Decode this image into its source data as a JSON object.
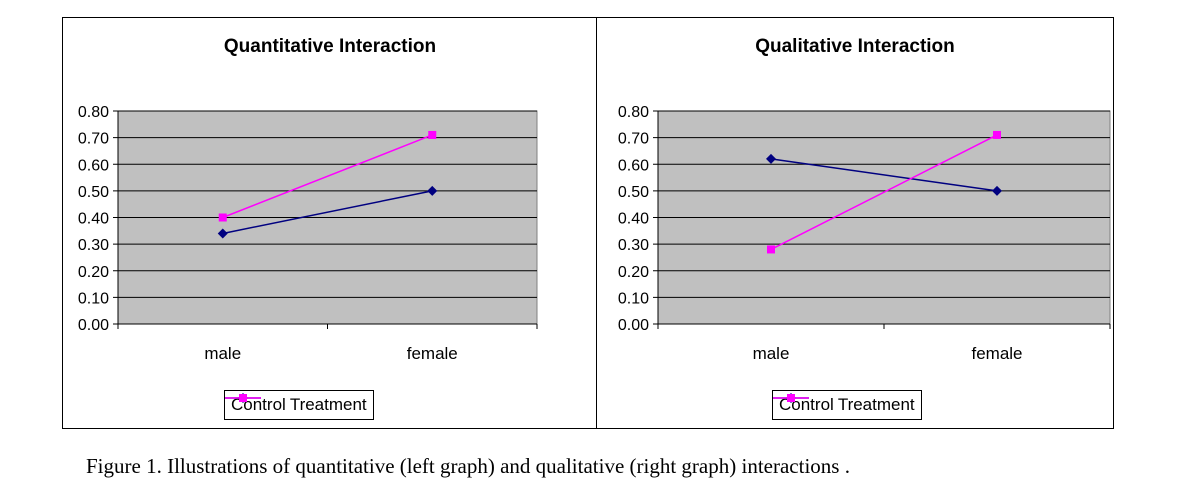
{
  "colors": {
    "plot_bg": "#c0c0c0",
    "control": "#000080",
    "treatment": "#ff00ff",
    "grid": "#000000"
  },
  "chart_data": [
    {
      "type": "line",
      "title": "Quantitative Interaction",
      "categories": [
        "male",
        "female"
      ],
      "ylim": [
        0,
        0.8
      ],
      "yticks": [
        "0.00",
        "0.10",
        "0.20",
        "0.30",
        "0.40",
        "0.50",
        "0.60",
        "0.70",
        "0.80"
      ],
      "grid": true,
      "legend_position": "bottom",
      "series": [
        {
          "name": "Control",
          "values": [
            0.34,
            0.5
          ],
          "marker": "diamond"
        },
        {
          "name": "Treatment",
          "values": [
            0.4,
            0.71
          ],
          "marker": "square"
        }
      ]
    },
    {
      "type": "line",
      "title": "Qualitative Interaction",
      "categories": [
        "male",
        "female"
      ],
      "ylim": [
        0,
        0.8
      ],
      "yticks": [
        "0.00",
        "0.10",
        "0.20",
        "0.30",
        "0.40",
        "0.50",
        "0.60",
        "0.70",
        "0.80"
      ],
      "grid": true,
      "legend_position": "bottom",
      "series": [
        {
          "name": "Control",
          "values": [
            0.62,
            0.5
          ],
          "marker": "diamond"
        },
        {
          "name": "Treatment",
          "values": [
            0.28,
            0.71
          ],
          "marker": "square"
        }
      ]
    }
  ],
  "caption": "Figure 1. Illustrations of quantitative (left graph) and qualitative (right graph) interactions ."
}
